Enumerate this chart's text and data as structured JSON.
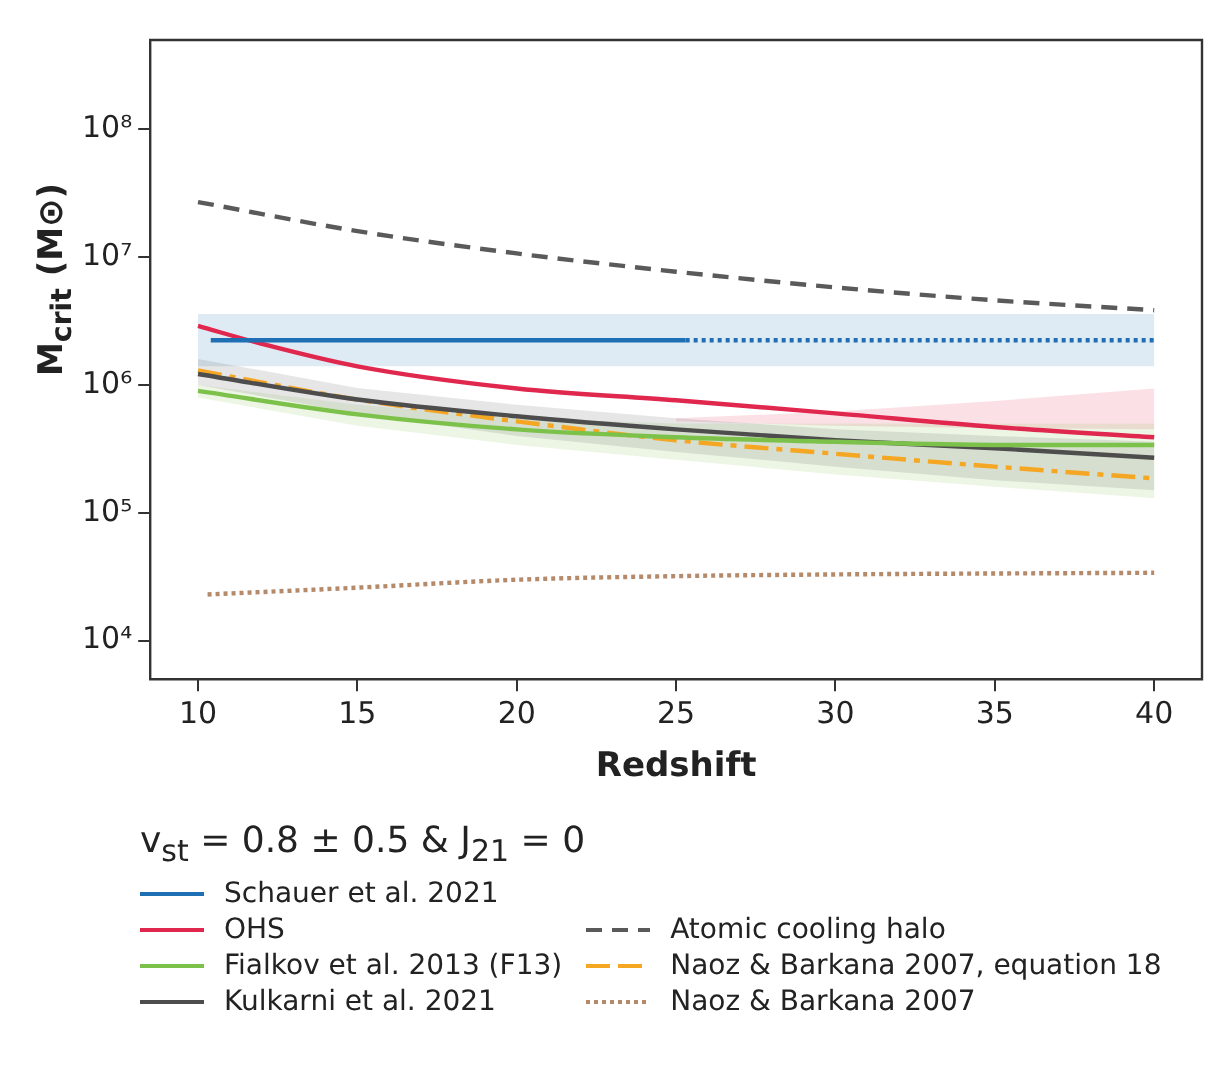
{
  "chart_data": {
    "type": "line",
    "xlabel": "Redshift",
    "ylabel": "M$_{crit}$ (M⊙)",
    "legend_title": "v$_{st}$ = 0.8 ± 0.5 & J$_{21}$ = 0",
    "log": "y",
    "grid": false,
    "legend": "bottom",
    "marker": "none",
    "xlim": [
      8.5,
      41.5
    ],
    "xticks": [
      10,
      15,
      20,
      25,
      30,
      35,
      40
    ],
    "ylim": [
      5000,
      500000000
    ],
    "yticks": [
      {
        "value": 10000,
        "label": "10⁴"
      },
      {
        "value": 100000,
        "label": "10⁵"
      },
      {
        "value": 1000000,
        "label": "10⁶"
      },
      {
        "value": 10000000,
        "label": "10⁷"
      },
      {
        "value": 100000000,
        "label": "10⁸"
      }
    ],
    "series": [
      {
        "name": "Schauer et al. 2021",
        "color": "#1f6fb4",
        "line_style": "solid",
        "x": [
          10.4,
          25.3
        ],
        "values": [
          2240000,
          2240000
        ]
      },
      {
        "color": "#1f6fb4",
        "line_style": "dotted",
        "x": [
          10,
          25.3,
          40
        ],
        "values": [
          null,
          2240000,
          2240000
        ],
        "lower": [
          1400000,
          1400000,
          1400000
        ],
        "upper": [
          3600000,
          3600000,
          3600000
        ]
      },
      {
        "name": "OHS",
        "color": "#e0284f",
        "line_style": "solid",
        "x": [
          10,
          12,
          15,
          20,
          25,
          30,
          35,
          40
        ],
        "values": [
          2900000,
          2100000,
          1400000,
          940000,
          760000,
          600000,
          470000,
          390000
        ],
        "lower": [
          null,
          null,
          null,
          null,
          520000,
          480000,
          460000,
          450000
        ],
        "upper": [
          null,
          null,
          null,
          null,
          550000,
          620000,
          750000,
          940000
        ]
      },
      {
        "name": "Fialkov et al. 2013 (F13)",
        "color": "#7cc24a",
        "line_style": "solid",
        "x": [
          10,
          15,
          20,
          25,
          30,
          35,
          40
        ],
        "values": [
          900000,
          590000,
          450000,
          390000,
          360000,
          340000,
          340000
        ],
        "lower": [
          800000,
          480000,
          340000,
          260000,
          200000,
          160000,
          130000
        ],
        "upper": [
          1000000,
          700000,
          550000,
          500000,
          500000,
          500000,
          500000
        ]
      },
      {
        "name": "Kulkarni et al. 2021",
        "color": "#4d4d4d",
        "line_style": "solid",
        "x": [
          10,
          15,
          20,
          25,
          30,
          35,
          40
        ],
        "values": [
          1220000,
          770000,
          570000,
          450000,
          370000,
          320000,
          270000
        ],
        "lower": [
          1000000,
          600000,
          400000,
          300000,
          230000,
          180000,
          150000
        ],
        "upper": [
          1600000,
          950000,
          700000,
          550000,
          450000,
          400000,
          360000
        ]
      },
      {
        "name": "Atomic cooling halo",
        "color": "#5a5a5a",
        "line_style": "dashed",
        "x": [
          10,
          15,
          20,
          25,
          30,
          35,
          40
        ],
        "values": [
          27000000,
          16000000,
          10700000,
          7700000,
          5800000,
          4600000,
          3850000
        ]
      },
      {
        "name": "Naoz & Barkana 2007, equation 18",
        "color": "#f5a623",
        "line_style": "dashdot",
        "x": [
          10,
          15,
          20,
          25,
          30,
          35,
          40
        ],
        "values": [
          1300000,
          770000,
          520000,
          370000,
          290000,
          230000,
          186000
        ]
      },
      {
        "name": "Naoz & Barkana 2007",
        "color": "#b48a6a",
        "line_style": "dotted",
        "x": [
          10.3,
          15,
          20,
          25,
          30,
          40
        ],
        "values": [
          23000,
          26000,
          30000,
          32000,
          33000,
          34000
        ]
      }
    ]
  }
}
